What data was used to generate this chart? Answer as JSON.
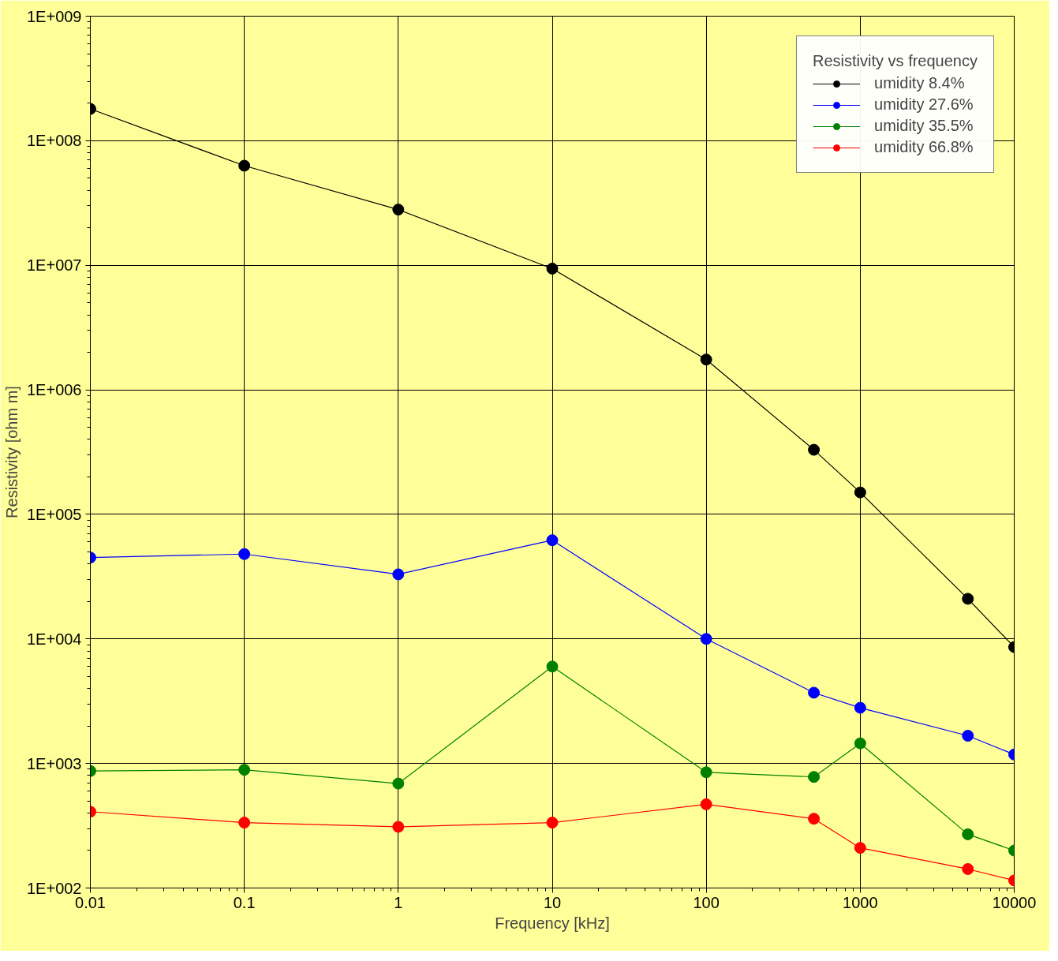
{
  "chart_data": {
    "type": "line",
    "xlabel": "Frequency [kHz]",
    "ylabel": "Resistivity [ohm m]",
    "legend_title": "Resistivity vs frequency",
    "x": [
      0.01,
      0.1,
      1,
      10,
      100,
      500,
      1000,
      5000,
      10000
    ],
    "series": [
      {
        "name": "umidity 8.4%",
        "color": "#000000",
        "values": [
          180000000,
          63000000,
          28000000,
          9400000,
          1750000,
          330000,
          150000,
          21000,
          8600
        ]
      },
      {
        "name": "umidity 27.6%",
        "color": "#0000ff",
        "values": [
          45000,
          48000,
          33000,
          62000,
          10000,
          3700,
          2800,
          1670,
          1180
        ]
      },
      {
        "name": "umidity 35.5%",
        "color": "#008000",
        "values": [
          870,
          890,
          690,
          6000,
          850,
          780,
          1450,
          270,
          200
        ]
      },
      {
        "name": "umidity 66.8%",
        "color": "#ff0000",
        "values": [
          410,
          335,
          310,
          335,
          470,
          360,
          210,
          142,
          115
        ]
      }
    ],
    "log": "xy",
    "xlim": [
      0.01,
      10000
    ],
    "ylim": [
      100,
      1000000000
    ],
    "xticks": [
      0.01,
      0.1,
      1,
      10,
      100,
      1000,
      10000
    ],
    "yticks": [
      {
        "value": 100,
        "label": "1E+002"
      },
      {
        "value": 1000,
        "label": "1E+003"
      },
      {
        "value": 10000,
        "label": "1E+004"
      },
      {
        "value": 100000,
        "label": "1E+005"
      },
      {
        "value": 1000000,
        "label": "1E+006"
      },
      {
        "value": 10000000,
        "label": "1E+007"
      },
      {
        "value": 100000000,
        "label": "1E+008"
      },
      {
        "value": 1000000000,
        "label": "1E+009"
      }
    ],
    "grid": true,
    "legend": "top right",
    "marker": "circle",
    "line_style": "solid"
  }
}
